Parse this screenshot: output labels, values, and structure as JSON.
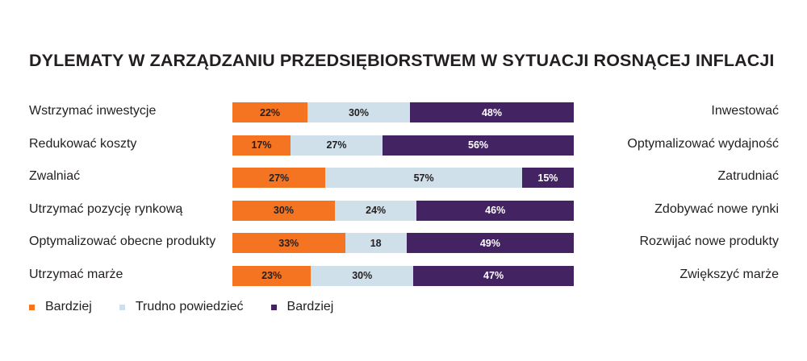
{
  "chart_data": {
    "type": "bar",
    "stacked": true,
    "orientation": "horizontal",
    "title": "DYLEMATY W ZARZĄDZANIU PRZEDSIĘBIORSTWEM W SYTUACJI ROSNĄCEJ INFLACJI",
    "categories": [
      "Wstrzymać inwestycje",
      "Redukować koszty",
      "Zwalniać",
      "Utrzymać pozycję rynkową",
      "Optymalizować obecne produkty",
      "Utrzymać marże"
    ],
    "right_labels": [
      "Inwestować",
      "Optymalizować wydajność",
      "Zatrudniać",
      "Zdobywać nowe rynki",
      "Rozwijać nowe produkty",
      "Zwiększyć marże"
    ],
    "series": [
      {
        "name": "Bardziej",
        "color": "#f47421",
        "values": [
          22,
          17,
          27,
          30,
          33,
          23
        ],
        "labels": [
          "22%",
          "17%",
          "27%",
          "30%",
          "33%",
          "23%"
        ]
      },
      {
        "name": "Trudno powiedzieć",
        "color": "#cfe0ea",
        "values": [
          30,
          27,
          57,
          24,
          18,
          30
        ],
        "labels": [
          "30%",
          "27%",
          "57%",
          "24%",
          "18",
          "30%"
        ]
      },
      {
        "name": "Bardziej",
        "color": "#432361",
        "values": [
          48,
          56,
          15,
          46,
          49,
          47
        ],
        "labels": [
          "48%",
          "56%",
          "15%",
          "46%",
          "49%",
          "47%"
        ]
      }
    ],
    "xlim": [
      0,
      100
    ],
    "grid": false,
    "legend_position": "bottom-left"
  }
}
